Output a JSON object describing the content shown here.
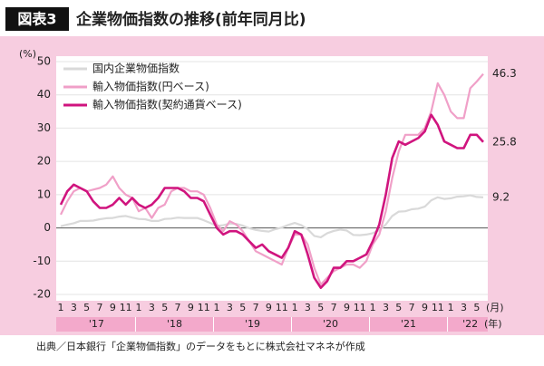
{
  "chart_data": {
    "type": "line",
    "badge": "図表3",
    "title": "企業物価指数の推移(前年同月比)",
    "y_unit": "(%)",
    "month_unit": "(月)",
    "year_unit": "(年)",
    "source": "出典／日本銀行「企業物価指数」のデータをもとに株式会社マネネが作成",
    "categories": [
      "1",
      null,
      "3",
      null,
      "5",
      null,
      "7",
      null,
      "9",
      null,
      "11",
      null,
      "1",
      null,
      "3",
      null,
      "5",
      null,
      "7",
      null,
      "9",
      null,
      "11",
      null,
      "1",
      null,
      "3",
      null,
      "5",
      null,
      "7",
      null,
      "9",
      null,
      "11",
      null,
      "1",
      null,
      "3",
      null,
      "5",
      null,
      "7",
      null,
      "9",
      null,
      "11",
      null,
      "1",
      null,
      "3",
      null,
      "5",
      null,
      "7",
      null,
      "9",
      null,
      "11",
      null,
      "1",
      null,
      "3",
      null,
      "5",
      null
    ],
    "years": [
      "'17",
      "'18",
      "'19",
      "'20",
      "'21",
      "'22"
    ],
    "ylim": [
      -20,
      50
    ],
    "yticks": [
      -20,
      -10,
      0,
      10,
      20,
      30,
      40,
      50
    ],
    "grid": true,
    "legend": "upper left",
    "series": [
      {
        "name": "国内企業物価指数",
        "color": "#d9d9d9",
        "values": [
          0.5,
          1,
          1.4,
          2.1,
          2.1,
          2.2,
          2.6,
          2.9,
          3.0,
          3.4,
          3.6,
          3.1,
          2.7,
          2.6,
          2.1,
          2.1,
          2.7,
          2.8,
          3.1,
          3.0,
          3.0,
          3.0,
          2.3,
          1.5,
          0.6,
          0.8,
          1.3,
          1.2,
          0.7,
          -0.1,
          -0.6,
          -0.9,
          -1.1,
          -0.4,
          0.1,
          0.9,
          1.5,
          0.8,
          -0.4,
          -2.4,
          -2.8,
          -1.6,
          -0.9,
          -0.5,
          -0.8,
          -2.1,
          -2.2,
          -2.0,
          -1.6,
          -0.7,
          1.0,
          3.6,
          4.9,
          5.0,
          5.6,
          5.8,
          6.4,
          8.3,
          9.2,
          8.7,
          8.9,
          9.4,
          9.5,
          9.8,
          9.3,
          9.2
        ]
      },
      {
        "name": "輸入物価指数(円ベース)",
        "color": "#f0a0c8",
        "values": [
          4,
          8,
          11,
          12,
          11,
          11.5,
          12,
          13,
          15.5,
          12,
          10,
          9,
          5,
          6,
          3,
          6,
          7,
          11,
          12,
          12,
          11,
          11,
          10,
          6,
          1,
          -1,
          2,
          1,
          -1,
          -4,
          -7,
          -8,
          -9,
          -10,
          -11,
          -6,
          -2,
          -2,
          -5,
          -12,
          -17,
          -15,
          -13,
          -12,
          -11,
          -11,
          -12,
          -10,
          -5,
          -2,
          5,
          15,
          23,
          28,
          28,
          28,
          30,
          35,
          43.5,
          40,
          35,
          33,
          33,
          42,
          44,
          46.3
        ]
      },
      {
        "name": "輸入物価指数(契約通貨ベース)",
        "color": "#d0147e",
        "values": [
          7,
          11,
          13,
          12,
          11,
          8,
          6,
          6,
          7,
          9,
          7,
          9,
          7,
          6,
          7,
          9,
          12,
          12,
          12,
          11,
          9,
          9,
          8,
          4,
          0,
          -2,
          -1,
          -1,
          -2,
          -4,
          -6,
          -5,
          -7,
          -8,
          -9,
          -6,
          -1,
          -2,
          -8,
          -15,
          -18,
          -16,
          -12,
          -12,
          -10,
          -10,
          -9,
          -8,
          -4,
          1,
          10,
          21,
          26,
          25,
          26,
          27,
          29,
          34,
          31,
          26,
          25,
          24,
          24,
          28,
          28,
          25.8
        ]
      }
    ]
  }
}
